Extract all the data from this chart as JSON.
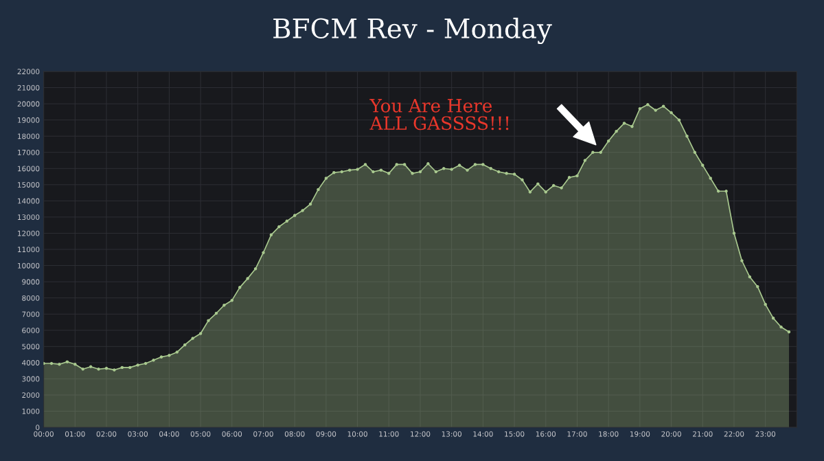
{
  "chart_data": {
    "type": "area",
    "title": "BFCM Rev - Monday",
    "x": [
      0,
      0.25,
      0.5,
      0.75,
      1,
      1.25,
      1.5,
      1.75,
      2,
      2.25,
      2.5,
      2.75,
      3,
      3.25,
      3.5,
      3.75,
      4,
      4.25,
      4.5,
      4.75,
      5,
      5.25,
      5.5,
      5.75,
      6,
      6.25,
      6.5,
      6.75,
      7,
      7.25,
      7.5,
      7.75,
      8,
      8.25,
      8.5,
      8.75,
      9,
      9.25,
      9.5,
      9.75,
      10,
      10.25,
      10.5,
      10.75,
      11,
      11.25,
      11.5,
      11.75,
      12,
      12.25,
      12.5,
      12.75,
      13,
      13.25,
      13.5,
      13.75,
      14,
      14.25,
      14.5,
      14.75,
      15,
      15.25,
      15.5,
      15.75,
      16,
      16.25,
      16.5,
      16.75,
      17,
      17.25,
      17.5,
      17.75,
      18,
      18.25,
      18.5,
      18.75,
      19,
      19.25,
      19.5,
      19.75,
      20,
      20.25,
      20.5,
      20.75,
      21,
      21.25,
      21.5,
      21.75,
      22,
      22.25,
      22.5,
      22.75,
      23,
      23.25,
      23.5,
      23.75
    ],
    "series": [
      {
        "color": "#a9c98f",
        "values": [
          3950,
          3950,
          3900,
          4050,
          3900,
          3600,
          3750,
          3600,
          3650,
          3550,
          3700,
          3700,
          3850,
          3950,
          4150,
          4350,
          4450,
          4650,
          5100,
          5500,
          5800,
          6600,
          7050,
          7550,
          7850,
          8650,
          9200,
          9800,
          10800,
          11900,
          12400,
          12750,
          13100,
          13400,
          13800,
          14700,
          15400,
          15750,
          15800,
          15900,
          15950,
          16250,
          15800,
          15900,
          15700,
          16250,
          16250,
          15700,
          15800,
          16300,
          15800,
          16000,
          15950,
          16200,
          15900,
          16250,
          16250,
          16000,
          15800,
          15700,
          15650,
          15300,
          14550,
          15050,
          14550,
          14950,
          14800,
          15450,
          15550,
          16500,
          17000,
          17000,
          17700,
          18300,
          18800,
          18600,
          19700,
          19950,
          19600,
          19850,
          19450,
          19000,
          18000,
          17000,
          16200,
          15400,
          14600,
          14600,
          12000,
          10300,
          9300,
          8700,
          7600,
          6750,
          6200,
          5900
        ]
      }
    ],
    "xlim": [
      0,
      24
    ],
    "xticks": [
      {
        "value": 0,
        "label": "00:00"
      },
      {
        "value": 1,
        "label": "01:00"
      },
      {
        "value": 2,
        "label": "02:00"
      },
      {
        "value": 3,
        "label": "03:00"
      },
      {
        "value": 4,
        "label": "04:00"
      },
      {
        "value": 5,
        "label": "05:00"
      },
      {
        "value": 6,
        "label": "06:00"
      },
      {
        "value": 7,
        "label": "07:00"
      },
      {
        "value": 8,
        "label": "08:00"
      },
      {
        "value": 9,
        "label": "09:00"
      },
      {
        "value": 10,
        "label": "10:00"
      },
      {
        "value": 11,
        "label": "11:00"
      },
      {
        "value": 12,
        "label": "12:00"
      },
      {
        "value": 13,
        "label": "13:00"
      },
      {
        "value": 14,
        "label": "14:00"
      },
      {
        "value": 15,
        "label": "15:00"
      },
      {
        "value": 16,
        "label": "16:00"
      },
      {
        "value": 17,
        "label": "17:00"
      },
      {
        "value": 18,
        "label": "18:00"
      },
      {
        "value": 19,
        "label": "19:00"
      },
      {
        "value": 20,
        "label": "20:00"
      },
      {
        "value": 21,
        "label": "21:00"
      },
      {
        "value": 22,
        "label": "22:00"
      },
      {
        "value": 23,
        "label": "23:00"
      }
    ],
    "ylim": [
      0,
      22000
    ],
    "yticks": [
      0,
      1000,
      2000,
      3000,
      4000,
      5000,
      6000,
      7000,
      8000,
      9000,
      10000,
      11000,
      12000,
      13000,
      14000,
      15000,
      16000,
      17000,
      18000,
      19000,
      20000,
      21000,
      22000
    ],
    "grid": true,
    "marker": "circle",
    "line_style": "solid",
    "annotations": [
      "You Are Here\nALL GASSSS!!!"
    ]
  }
}
